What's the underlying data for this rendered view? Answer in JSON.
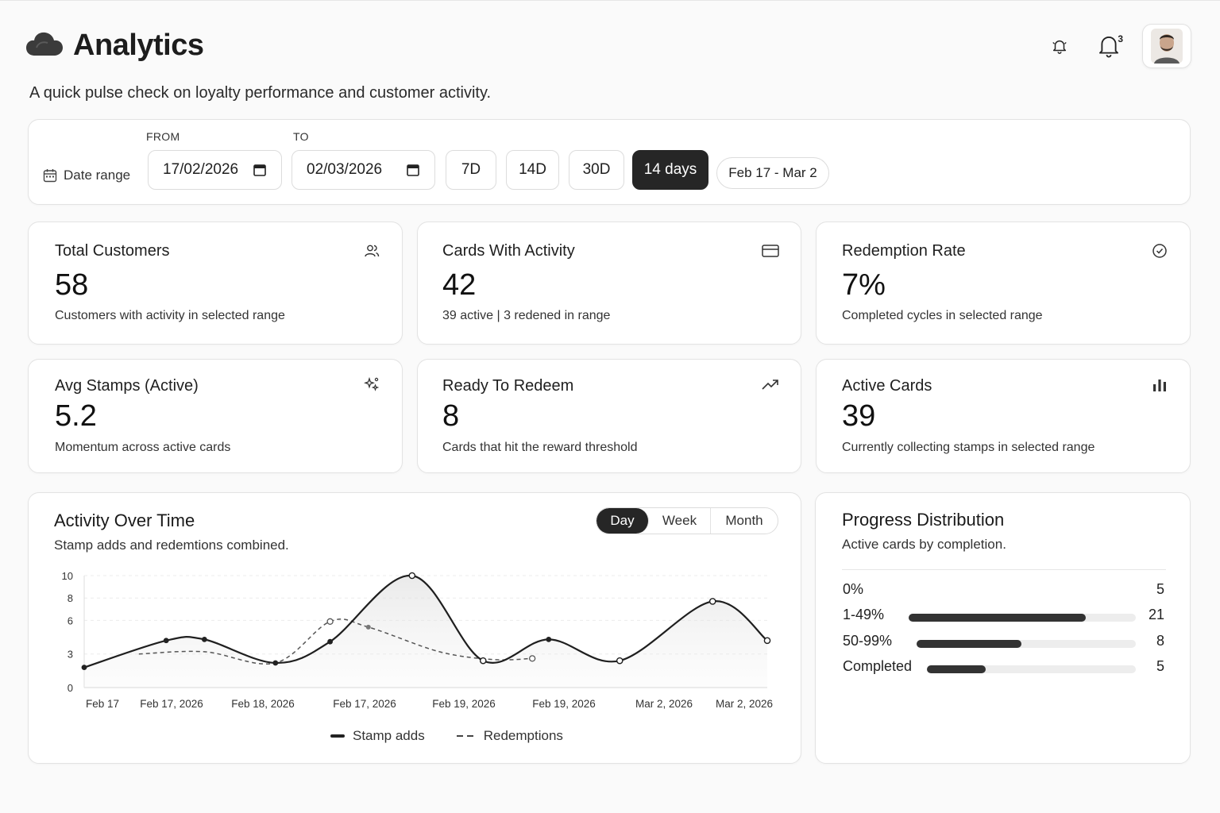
{
  "header": {
    "title": "Analytics",
    "subtitle": "A quick pulse check on loyalty performance and customer activity.",
    "notification_count": "3"
  },
  "range": {
    "label": "Date range",
    "from_label": "FROM",
    "from_value": "17/02/2026",
    "to_label": "TO",
    "to_value": "02/03/2026",
    "presets": [
      "7D",
      "14D",
      "30D",
      "14 days"
    ],
    "active_preset": "14 days",
    "summary": "Feb 17 - Mar 2"
  },
  "stats": [
    {
      "title": "Total Customers",
      "value": "58",
      "desc": "Customers with activity in  selected range",
      "icon": "users-icon"
    },
    {
      "title": "Cards With Activity",
      "value": "42",
      "desc": "39 active | 3 redened in range",
      "icon": "card-icon"
    },
    {
      "title": "Redemption Rate",
      "value": "7%",
      "desc": "Completed cycles in selected range",
      "icon": "check-circle-icon"
    },
    {
      "title": "Avg Stamps (Active)",
      "value": "5.2",
      "desc": "Momentum across active cards",
      "icon": "sparkle-icon"
    },
    {
      "title": "Ready To Redeem",
      "value": "8",
      "desc": "Cards that hit the reward threshold",
      "icon": "trend-up-icon"
    },
    {
      "title": "Active Cards",
      "value": "39",
      "desc": "Currently collecting stamps in selected range",
      "icon": "bar-chart-icon"
    }
  ],
  "activity": {
    "title": "Activity Over Time",
    "subtitle": "Stamp adds and redemtions combined.",
    "tabs": [
      "Day",
      "Week",
      "Month"
    ],
    "active_tab": "Day"
  },
  "chart_data": {
    "type": "line",
    "y_ticks": [
      "10",
      "8",
      "6",
      "3",
      "0"
    ],
    "ylim": [
      0,
      10
    ],
    "x_tick_labels": [
      "Feb 17",
      "Feb 17, 2026",
      "Feb 18, 2026",
      "Feb 17, 2026",
      "Feb 19, 2026",
      "Feb 19, 2026",
      "Mar 2, 2026",
      "Mar 2, 2026"
    ],
    "grid": true,
    "legend_position": "bottom",
    "series": [
      {
        "name": "Stamp adds",
        "style": "solid",
        "x": [
          0,
          1.5,
          2.2,
          3.5,
          4.5,
          6,
          7.3,
          8.5,
          9.8,
          11.5,
          12.5
        ],
        "y": [
          1.8,
          4.2,
          4.3,
          2.2,
          4.1,
          10,
          2.4,
          4.3,
          2.4,
          7.7,
          4.2
        ]
      },
      {
        "name": "Redemptions",
        "style": "dashed",
        "x": [
          1,
          2.2,
          3.5,
          4.5,
          5.2,
          6.5,
          7.5,
          8.2
        ],
        "y": [
          3,
          3.2,
          2.2,
          5.9,
          5.4,
          3.2,
          2.5,
          2.6
        ]
      }
    ]
  },
  "distribution": {
    "title": "Progress Distribution",
    "subtitle": "Active cards by completion.",
    "rows": [
      {
        "label": "0%",
        "count": "5",
        "fraction": 0
      },
      {
        "label": "1-49%",
        "count": "21",
        "fraction": 0.78
      },
      {
        "label": "50-99%",
        "count": "8",
        "fraction": 0.48
      },
      {
        "label": "Completed",
        "count": "5",
        "fraction": 0.28
      }
    ]
  },
  "colors": {
    "accent": "#262626",
    "background": "#fafafa",
    "card": "#ffffff",
    "border": "#e3e3e3"
  }
}
